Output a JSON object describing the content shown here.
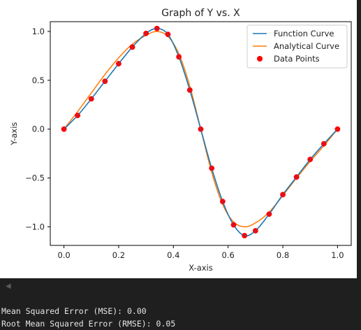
{
  "chart_data": {
    "type": "line",
    "title": "Graph of Y vs. X",
    "xlabel": "X-axis",
    "ylabel": "Y-axis",
    "xlim": [
      -0.05,
      1.05
    ],
    "ylim": [
      -1.19,
      1.1
    ],
    "xticks": [
      0.0,
      0.2,
      0.4,
      0.6,
      0.8,
      1.0
    ],
    "xtick_labels": [
      "0.0",
      "0.2",
      "0.4",
      "0.6",
      "0.8",
      "1.0"
    ],
    "yticks": [
      -1.0,
      -0.5,
      0.0,
      0.5,
      1.0
    ],
    "ytick_labels": [
      "−1.0",
      "−0.5",
      "0.0",
      "0.5",
      "1.0"
    ],
    "grid": false,
    "legend_position": "top-right",
    "series": [
      {
        "name": "Function Curve",
        "kind": "line",
        "color": "#1f77b4",
        "x": [
          0.0,
          0.05,
          0.1,
          0.15,
          0.2,
          0.25,
          0.3,
          0.34,
          0.38,
          0.42,
          0.46,
          0.5,
          0.54,
          0.58,
          0.62,
          0.66,
          0.7,
          0.75,
          0.8,
          0.85,
          0.9,
          0.95,
          1.0
        ],
        "y": [
          0.0,
          0.14,
          0.31,
          0.49,
          0.67,
          0.84,
          0.98,
          1.03,
          0.97,
          0.74,
          0.4,
          0.0,
          -0.4,
          -0.74,
          -0.98,
          -1.09,
          -1.04,
          -0.87,
          -0.67,
          -0.49,
          -0.31,
          -0.15,
          0.0
        ]
      },
      {
        "name": "Analytical Curve",
        "kind": "line",
        "color": "#ff7f0e",
        "x": [
          0.0,
          0.05,
          0.1,
          0.15,
          0.2,
          0.25,
          0.3,
          0.34,
          0.38,
          0.42,
          0.46,
          0.5,
          0.54,
          0.58,
          0.62,
          0.66,
          0.7,
          0.75,
          0.8,
          0.85,
          0.9,
          0.95,
          1.0
        ],
        "y": [
          0.0,
          0.18,
          0.37,
          0.56,
          0.73,
          0.87,
          0.96,
          1.0,
          0.95,
          0.77,
          0.44,
          0.0,
          -0.44,
          -0.77,
          -0.95,
          -1.0,
          -0.96,
          -0.85,
          -0.68,
          -0.5,
          -0.33,
          -0.17,
          0.0
        ]
      },
      {
        "name": "Data Points",
        "kind": "scatter",
        "color": "#ff0000",
        "x": [
          0.0,
          0.05,
          0.1,
          0.15,
          0.2,
          0.25,
          0.3,
          0.34,
          0.38,
          0.42,
          0.46,
          0.5,
          0.54,
          0.58,
          0.62,
          0.66,
          0.7,
          0.75,
          0.8,
          0.85,
          0.9,
          0.95,
          1.0
        ],
        "y": [
          0.0,
          0.14,
          0.31,
          0.49,
          0.67,
          0.84,
          0.98,
          1.03,
          0.97,
          0.74,
          0.4,
          0.0,
          -0.4,
          -0.74,
          -0.98,
          -1.09,
          -1.04,
          -0.87,
          -0.67,
          -0.49,
          -0.31,
          -0.15,
          0.0
        ]
      }
    ]
  },
  "console": {
    "mse_line": "Mean Squared Error (MSE): 0.00",
    "rmse_line": "Root Mean Squared Error (RMSE): 0.05"
  }
}
